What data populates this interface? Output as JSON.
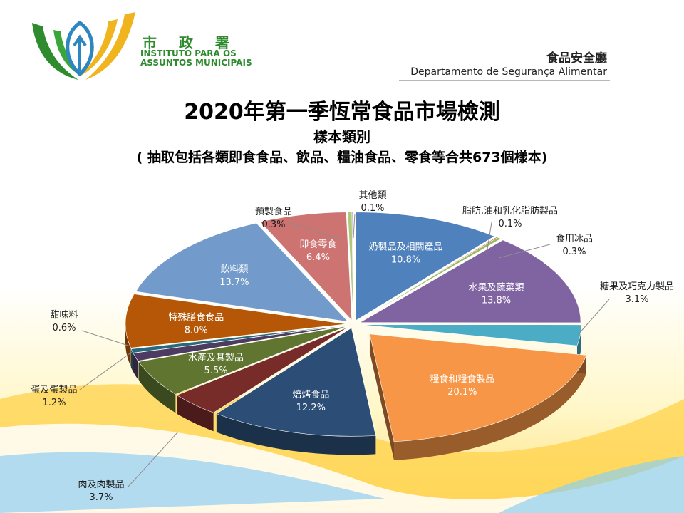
{
  "header": {
    "logo": {
      "name_cn": "市 政 署",
      "name_pt_line1": "INSTITUTO PARA OS",
      "name_pt_line2": "ASSUNTOS MUNICIPAIS",
      "colors": {
        "green": "#2e8b2e",
        "gold": "#f0b41e",
        "blue": "#2e86c1"
      }
    },
    "department_cn": "食品安全廳",
    "department_pt": "Departamento de Segurança Alimentar"
  },
  "chart_data": {
    "type": "pie",
    "title": "2020年第一季恆常食品市場檢測",
    "subtitle": "樣本類別",
    "note": "( 抽取包括各類即食食品、飲品、糧油食品、零食等合共673個樣本)",
    "total_samples": 673,
    "unit": "%",
    "slices": [
      {
        "label": "奶製品及相關產品",
        "value": 10.8,
        "display": "10.8%",
        "color": "#4f81bd",
        "label_inside": true
      },
      {
        "label": "脂肪,油和乳化脂肪製品",
        "value": 0.1,
        "display": "0.1%",
        "color": "#c0504d",
        "label_inside": false
      },
      {
        "label": "食用冰品",
        "value": 0.3,
        "display": "0.3%",
        "color": "#9bbb59",
        "label_inside": false
      },
      {
        "label": "水果及蔬菜類",
        "value": 13.8,
        "display": "13.8%",
        "color": "#8064a2",
        "label_inside": true
      },
      {
        "label": "糖果及巧克力製品",
        "value": 3.1,
        "display": "3.1%",
        "color": "#4bacc6",
        "label_inside": false
      },
      {
        "label": "糧食和糧食製品",
        "value": 20.1,
        "display": "20.1%",
        "color": "#f79646",
        "label_inside": true,
        "exploded": true
      },
      {
        "label": "焙烤食品",
        "value": 12.2,
        "display": "12.2%",
        "color": "#2c4d75",
        "label_inside": true
      },
      {
        "label": "肉及肉製品",
        "value": 3.7,
        "display": "3.7%",
        "color": "#772c2a",
        "label_inside": false
      },
      {
        "label": "水產及其製品",
        "value": 5.5,
        "display": "5.5%",
        "color": "#5f7530",
        "label_inside": true
      },
      {
        "label": "蛋及蛋製品",
        "value": 1.2,
        "display": "1.2%",
        "color": "#4d3b62",
        "label_inside": false
      },
      {
        "label": "甜味料",
        "value": 0.6,
        "display": "0.6%",
        "color": "#276a7c",
        "label_inside": false
      },
      {
        "label": "特殊膳食食品",
        "value": 8.0,
        "display": "8.0%",
        "color": "#b65708",
        "label_inside": true
      },
      {
        "label": "飲料類",
        "value": 13.7,
        "display": "13.7%",
        "color": "#729aca",
        "label_inside": true
      },
      {
        "label": "即食零食",
        "value": 6.4,
        "display": "6.4%",
        "color": "#cd7371",
        "label_inside": true
      },
      {
        "label": "預製食品",
        "value": 0.3,
        "display": "0.3%",
        "color": "#afc97a",
        "label_inside": false
      },
      {
        "label": "其他類",
        "value": 0.1,
        "display": "0.1%",
        "color": "#a99bbd",
        "label_inside": false
      }
    ],
    "legend": "none",
    "style": "3d-exploded"
  }
}
